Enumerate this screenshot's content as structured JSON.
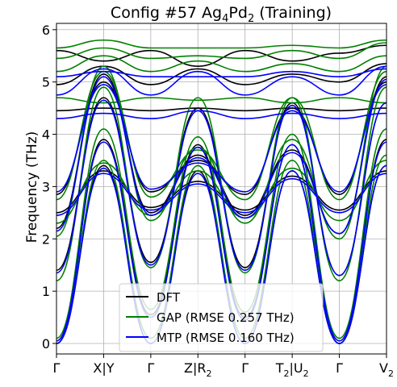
{
  "chart_data": {
    "type": "line",
    "title_main": "Config #57 Ag",
    "title_sub1": "4",
    "title_mid": "Pd",
    "title_sub2": "2",
    "title_tail": " (Training)",
    "ylabel": "Frequency (THz)",
    "xlabel": "",
    "ylim": [
      -0.2,
      6.12
    ],
    "grid": true,
    "legend_position": "lower-center",
    "y_ticks": [
      0,
      1,
      2,
      3,
      4,
      5,
      6
    ],
    "x_ticks": [
      {
        "x": 0.0,
        "main": "Γ",
        "sub": "",
        "tail": ""
      },
      {
        "x": 1.0,
        "main": "X|Y",
        "sub": "",
        "tail": ""
      },
      {
        "x": 2.0,
        "main": "Γ",
        "sub": "",
        "tail": ""
      },
      {
        "x": 3.0,
        "main": "Z|R",
        "sub": "2",
        "tail": ""
      },
      {
        "x": 4.0,
        "main": "Γ",
        "sub": "",
        "tail": ""
      },
      {
        "x": 5.0,
        "main": "T",
        "sub": "2",
        "tail": "|U",
        "sub2": "2"
      },
      {
        "x": 6.0,
        "main": "Γ",
        "sub": "",
        "tail": ""
      },
      {
        "x": 7.0,
        "main": "V",
        "sub": "2",
        "tail": ""
      }
    ],
    "band_knots_x": [
      0,
      1,
      2,
      3,
      4,
      5,
      6,
      7
    ],
    "series": [
      {
        "name": "DFT",
        "color": "#000000",
        "bands": [
          [
            0,
            3.4,
            0,
            3.3,
            0,
            3.3,
            0,
            3.4
          ],
          [
            0,
            3.9,
            0.55,
            3.8,
            0.5,
            3.8,
            0,
            3.9
          ],
          [
            1.4,
            4.7,
            1.55,
            4.5,
            1.45,
            4.6,
            1.3,
            4.6
          ],
          [
            2.2,
            5.15,
            2.5,
            3.6,
            2.45,
            3.7,
            2.1,
            5.1
          ],
          [
            2.5,
            3.3,
            2.6,
            3.1,
            2.55,
            3.2,
            2.55,
            3.3
          ],
          [
            2.85,
            5.0,
            2.9,
            3.5,
            2.85,
            4.5,
            2.85,
            5.0
          ],
          [
            4.45,
            4.5,
            4.45,
            4.5,
            4.45,
            4.5,
            4.45,
            4.5
          ],
          [
            4.95,
            5.3,
            4.95,
            5.25,
            4.95,
            5.15,
            5.0,
            5.35
          ],
          [
            5.6,
            5.4,
            5.6,
            5.3,
            5.6,
            5.4,
            5.55,
            5.7
          ]
        ]
      },
      {
        "name": "GAP (RMSE 0.257 THz)",
        "color": "#008000",
        "bands": [
          [
            0,
            3.5,
            0.1,
            3.4,
            0.1,
            3.5,
            0,
            3.6
          ],
          [
            0.1,
            4.1,
            0.65,
            3.95,
            0.6,
            4.0,
            0.1,
            4.1
          ],
          [
            1.2,
            4.9,
            1.45,
            4.7,
            1.35,
            4.7,
            1.2,
            4.9
          ],
          [
            2.05,
            5.3,
            2.35,
            3.75,
            2.3,
            3.9,
            2.0,
            5.3
          ],
          [
            2.3,
            3.45,
            2.45,
            3.3,
            2.4,
            3.35,
            2.35,
            3.5
          ],
          [
            2.75,
            5.2,
            2.8,
            3.7,
            2.75,
            4.7,
            2.75,
            5.2
          ],
          [
            4.7,
            4.6,
            4.7,
            4.65,
            4.7,
            4.6,
            4.7,
            4.6
          ],
          [
            5.2,
            5.5,
            5.2,
            5.4,
            5.2,
            5.35,
            5.2,
            5.5
          ],
          [
            5.45,
            5.65,
            5.45,
            5.5,
            5.45,
            5.6,
            5.45,
            5.75
          ],
          [
            5.65,
            5.8,
            5.65,
            5.65,
            5.65,
            5.7,
            5.65,
            5.8
          ]
        ]
      },
      {
        "name": "MTP (RMSE 0.160 THz)",
        "color": "#0000ff",
        "bands": [
          [
            0,
            3.35,
            0,
            3.25,
            0,
            3.3,
            0,
            3.4
          ],
          [
            0.05,
            3.85,
            0.5,
            3.75,
            0.45,
            3.8,
            0.05,
            3.85
          ],
          [
            1.35,
            4.65,
            1.5,
            4.45,
            1.4,
            4.55,
            1.3,
            4.6
          ],
          [
            2.15,
            5.1,
            2.45,
            3.55,
            2.4,
            3.65,
            2.1,
            5.05
          ],
          [
            2.45,
            3.25,
            2.55,
            3.05,
            2.5,
            3.15,
            2.5,
            3.25
          ],
          [
            2.9,
            4.95,
            2.95,
            3.45,
            2.9,
            4.45,
            2.9,
            4.95
          ],
          [
            4.3,
            4.4,
            4.3,
            4.45,
            4.3,
            4.4,
            4.3,
            4.4
          ],
          [
            4.75,
            5.25,
            4.75,
            5.2,
            4.75,
            5.1,
            4.75,
            5.3
          ],
          [
            5.1,
            5.2,
            5.1,
            5.1,
            5.1,
            5.2,
            5.1,
            5.25
          ]
        ]
      }
    ]
  }
}
